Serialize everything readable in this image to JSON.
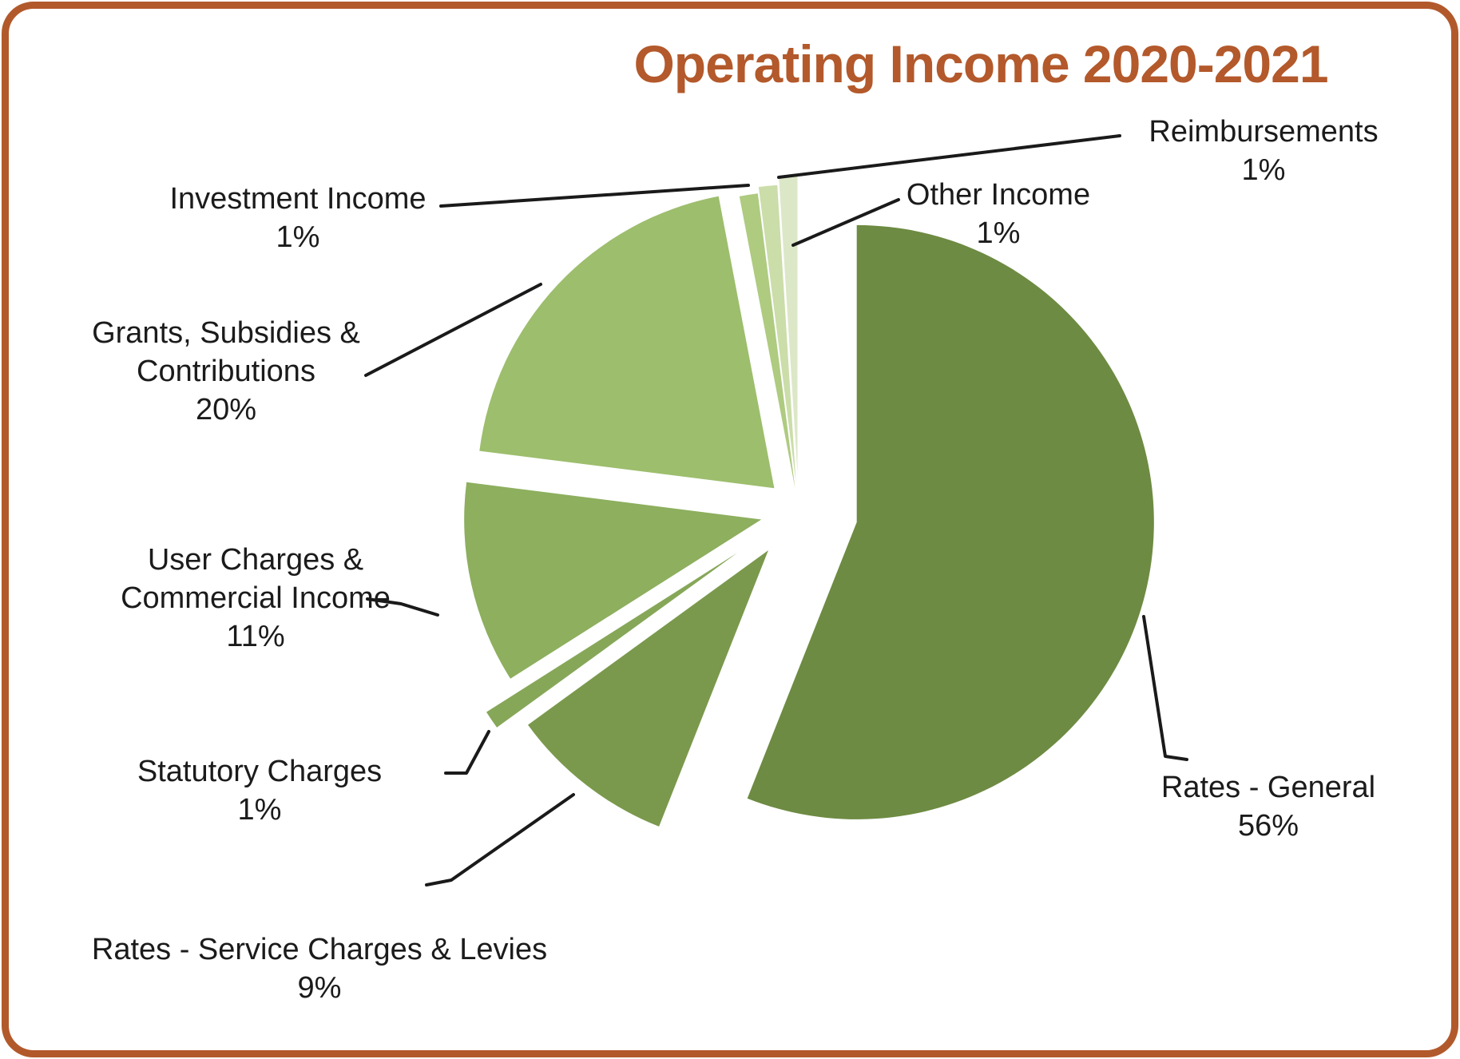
{
  "title": "Operating Income 2020-2021",
  "colors": {
    "title_text": "#B3592B",
    "border": "#B2592B",
    "label_text": "#1B1B1B",
    "leader_line": "#1A1A1A",
    "background": "#FFFFFF"
  },
  "chart_data": {
    "type": "pie",
    "title": "Operating Income 2020-2021",
    "direction": "clockwise",
    "start_angle_deg": 0,
    "legend": "none",
    "exploded": true,
    "data_labels": "category name + percent, outside with leader lines",
    "slices": [
      {
        "key": "rates-general",
        "category": "Rates - General",
        "value_pct": 56,
        "color": "#6D8B42"
      },
      {
        "key": "rates-service-charges-levies",
        "category": "Rates - Service Charges & Levies",
        "value_pct": 9,
        "color": "#7A994C"
      },
      {
        "key": "statutory-charges",
        "category": "Statutory Charges",
        "value_pct": 1,
        "color": "#86A758"
      },
      {
        "key": "user-charges-commercial-income",
        "category": "User Charges & Commercial Income",
        "value_pct": 11,
        "color": "#8DAF5E"
      },
      {
        "key": "grants-subsidies-contributions",
        "category": "Grants, Subsidies & Contributions",
        "value_pct": 20,
        "color": "#9DBE6D"
      },
      {
        "key": "investment-income",
        "category": "Investment Income",
        "value_pct": 1,
        "color": "#AECB80"
      },
      {
        "key": "reimbursements",
        "category": "Reimbursements",
        "value_pct": 1,
        "color": "#CBDDA9"
      },
      {
        "key": "other-income",
        "category": "Other Income",
        "value_pct": 1,
        "color": "#DCE7C8"
      }
    ]
  },
  "labels": {
    "investment": {
      "l1": "Investment Income",
      "pct": "1%"
    },
    "grants": {
      "l1": "Grants, Subsidies &",
      "l2": "Contributions",
      "pct": "20%"
    },
    "user": {
      "l1": "User Charges &",
      "l2": "Commercial Income",
      "pct": "11%"
    },
    "statutory": {
      "l1": "Statutory Charges",
      "pct": "1%"
    },
    "service": {
      "l1": "Rates - Service Charges & Levies",
      "pct": "9%"
    },
    "general": {
      "l1": "Rates - General",
      "pct": "56%"
    },
    "reimbursements": {
      "l1": "Reimbursements",
      "pct": "1%"
    },
    "other": {
      "l1": "Other Income",
      "pct": "1%"
    }
  }
}
